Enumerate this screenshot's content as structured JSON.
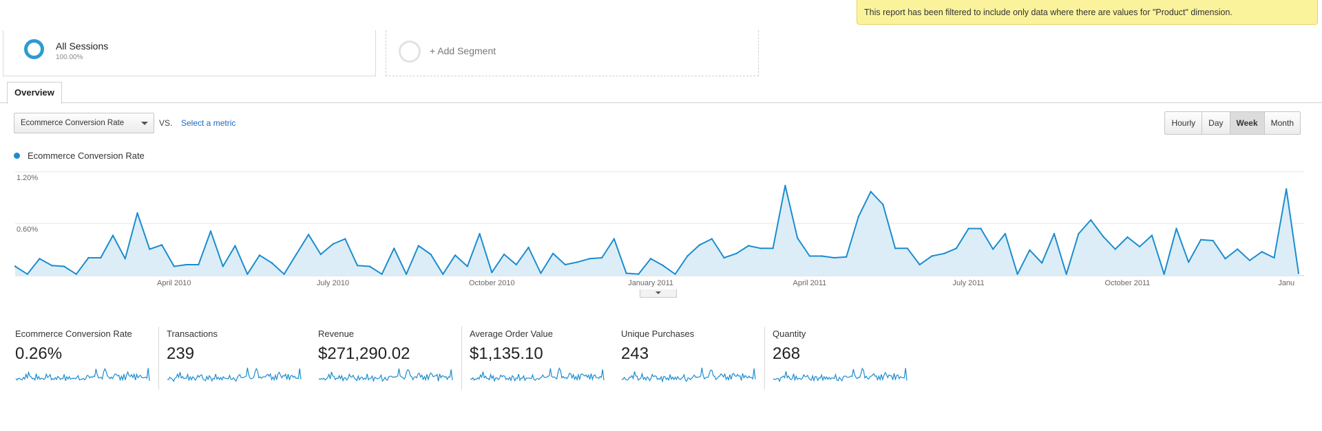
{
  "notice": "This report has been filtered to include only data where there are values for \"Product\" dimension.",
  "segments": {
    "primary": {
      "title": "All Sessions",
      "subtitle": "100.00%"
    },
    "add": "+ Add Segment"
  },
  "tabs": {
    "overview": "Overview"
  },
  "controls": {
    "metric_select": "Ecommerce Conversion Rate",
    "vs": "VS.",
    "select_metric": "Select a metric",
    "granularity": [
      "Hourly",
      "Day",
      "Week",
      "Month"
    ],
    "active_granularity": "Week"
  },
  "colors": {
    "line": "#1a8ccf",
    "fill": "#dcedf7",
    "accent": "#2c9bd1"
  },
  "chart_data": {
    "type": "area",
    "series": [
      {
        "name": "Ecommerce Conversion Rate"
      }
    ],
    "y_ticks": [
      "1.20%",
      "0.60%"
    ],
    "ylim": [
      0,
      1.2
    ],
    "x_ticks": [
      {
        "label": "April 2010",
        "week": 13
      },
      {
        "label": "July 2010",
        "week": 26
      },
      {
        "label": "October 2010",
        "week": 39
      },
      {
        "label": "January 2011",
        "week": 52
      },
      {
        "label": "April 2011",
        "week": 65
      },
      {
        "label": "July 2011",
        "week": 78
      },
      {
        "label": "October 2011",
        "week": 91
      },
      {
        "label": "Janu",
        "week": 104
      }
    ],
    "values": [
      0.1,
      0.01,
      0.19,
      0.11,
      0.1,
      0.01,
      0.2,
      0.2,
      0.46,
      0.19,
      0.72,
      0.3,
      0.35,
      0.1,
      0.12,
      0.12,
      0.51,
      0.1,
      0.34,
      0.01,
      0.23,
      0.14,
      0.01,
      0.24,
      0.47,
      0.24,
      0.36,
      0.42,
      0.11,
      0.1,
      0.01,
      0.31,
      0.01,
      0.34,
      0.24,
      0.01,
      0.23,
      0.1,
      0.48,
      0.03,
      0.24,
      0.12,
      0.32,
      0.02,
      0.25,
      0.12,
      0.15,
      0.19,
      0.2,
      0.42,
      0.02,
      0.01,
      0.19,
      0.11,
      0.01,
      0.22,
      0.35,
      0.42,
      0.2,
      0.25,
      0.34,
      0.31,
      0.31,
      1.04,
      0.43,
      0.22,
      0.22,
      0.2,
      0.21,
      0.68,
      0.97,
      0.82,
      0.31,
      0.31,
      0.12,
      0.22,
      0.25,
      0.31,
      0.54,
      0.54,
      0.3,
      0.48,
      0.01,
      0.29,
      0.14,
      0.48,
      0.01,
      0.48,
      0.64,
      0.45,
      0.3,
      0.44,
      0.33,
      0.46,
      0.01,
      0.54,
      0.15,
      0.41,
      0.4,
      0.19,
      0.3,
      0.17,
      0.27,
      0.2,
      1.0,
      0.02
    ],
    "grid": true
  },
  "sparklines": [
    {
      "name": "Ecommerce Conversion Rate",
      "value": "0.26%"
    },
    {
      "name": "Transactions",
      "value": "239"
    },
    {
      "name": "Revenue",
      "value": "$271,290.02"
    },
    {
      "name": "Average Order Value",
      "value": "$1,135.10"
    },
    {
      "name": "Unique Purchases",
      "value": "243"
    },
    {
      "name": "Quantity",
      "value": "268"
    }
  ]
}
